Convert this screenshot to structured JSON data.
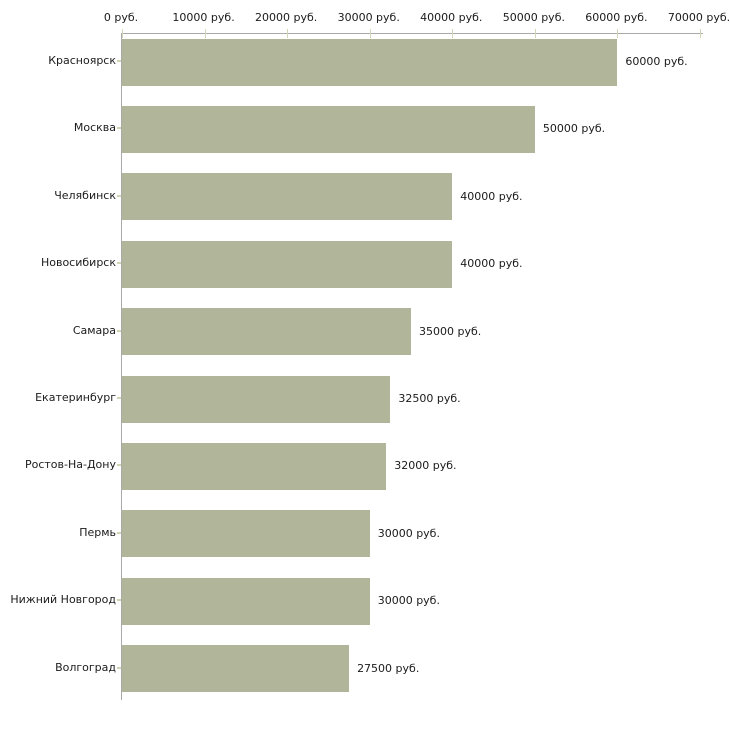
{
  "chart_data": {
    "type": "bar",
    "orientation": "horizontal",
    "title": "",
    "xlabel": "",
    "ylabel": "",
    "unit": "руб.",
    "categories": [
      "Красноярск",
      "Москва",
      "Челябинск",
      "Новосибирск",
      "Самара",
      "Екатеринбург",
      "Ростов-На-Дону",
      "Пермь",
      "Нижний Новгород",
      "Волгоград"
    ],
    "values": [
      60000,
      50000,
      40000,
      40000,
      35000,
      32500,
      32000,
      30000,
      30000,
      27500
    ],
    "value_labels": [
      "60000 руб.",
      "50000 руб.",
      "40000 руб.",
      "40000 руб.",
      "35000 руб.",
      "32500 руб.",
      "32000 руб.",
      "30000 руб.",
      "30000 руб.",
      "27500 руб."
    ],
    "x_ticks": [
      0,
      10000,
      20000,
      30000,
      40000,
      50000,
      60000,
      70000
    ],
    "x_tick_labels": [
      "0 руб.",
      "10000 руб.",
      "20000 руб.",
      "30000 руб.",
      "40000 руб.",
      "50000 руб.",
      "60000 руб.",
      "70000 руб."
    ],
    "xlim": [
      0,
      70000
    ],
    "grid": false,
    "legend": false,
    "colors": {
      "bar": "#b1b59a",
      "axis": "#a9a9a9",
      "tick": "#d2d6b4",
      "text": "#1b1b1b",
      "background": "#ffffff"
    }
  }
}
